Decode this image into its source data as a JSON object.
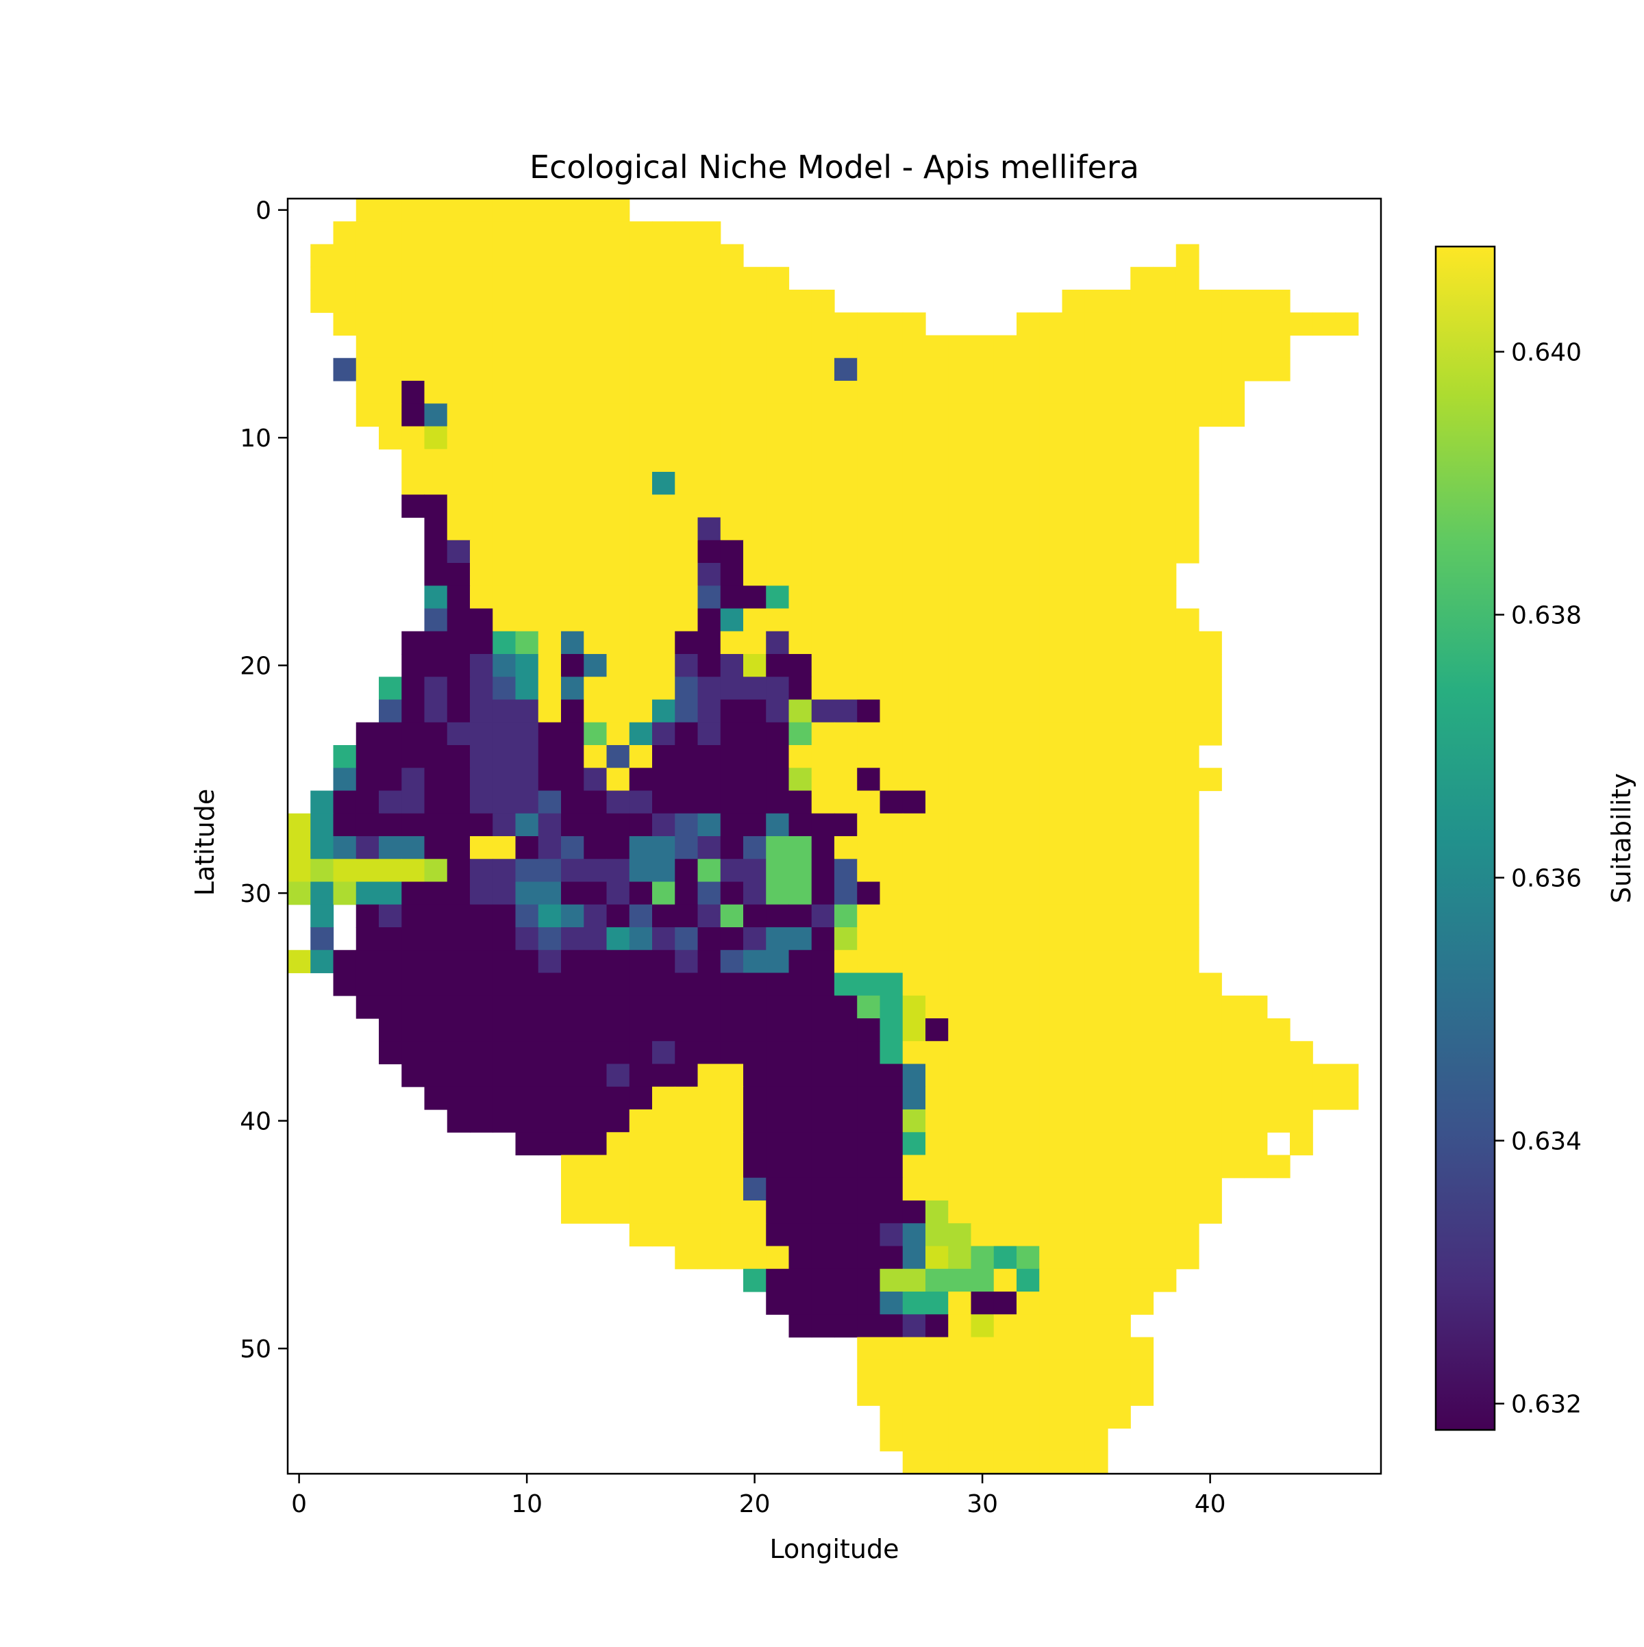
{
  "chart_data": {
    "type": "heatmap",
    "title": "Ecological Niche Model - Apis mellifera",
    "xlabel": "Longitude",
    "ylabel": "Latitude",
    "colorbar_label": "Suitability",
    "xlim": [
      -0.5,
      47.5
    ],
    "ylim": [
      55.5,
      -0.5
    ],
    "xticks": [
      0,
      10,
      20,
      30,
      40
    ],
    "yticks": [
      0,
      10,
      20,
      30,
      40,
      50
    ],
    "colorbar_range": [
      0.6318,
      0.6408
    ],
    "colorbar_ticks": [
      "0.632",
      "0.634",
      "0.636",
      "0.638",
      "0.640"
    ],
    "colorbar_tick_values": [
      0.632,
      0.634,
      0.636,
      0.638,
      0.64
    ],
    "colormap": "viridis",
    "grid": false,
    "nodata": ".",
    "level_key": "0-9 = suitability from 0.6318 (0) to 0.6408 (9)",
    "rows": [
      "...999999999999................................",
      "..99999999999999999............................",
      ".9999999999999999999...................9.......",
      ".999999999999999999999...............999......",
      ".99999999999999999999999..........9999999999...",
      "..99999999999999999999999999....999999999999999",
      "...99999999999999999999999999999999999999999...",
      "..299999999999999999999929999999999999999999...",
      "...990999999999999999999999999999999999999.....",
      "...990399999999999999999999999999999999999.....",
      "....998999999999999999999999999999999999.......",
      ".....99999999999999999999999999999999999.......",
      ".....99999999999499999999999999999999999.......",
      ".....00999999999999999999999999999999999.......",
      "......0999999999991999999999999999999999.......",
      "......0199999999990099999999999999999999.......",
      "......009999999999109999999999999999999........",
      "......409999999999200599999999999999999........",
      "......2009999999990499999999999999999999.......",
      ".....000056939999009919999999999999999999......",
      ".....000134903999101800999999999999999999......",
      "....5010124939999211110999999999999999999......",
      "....2010111909994210017110999999999999999......",
      "...00001111006941010006999999999999999999......",
      "..50000011100929000000999999999999999999.......",
      "..300100111001900000007990999999999999999......",
      ".400110011120011000000099900999999999999.......",
      "8400000001310000123003000999999999999999.......",
      "8431330099012003321026609999999999999999.......",
      "8788887011221113306116602999999999999999.......",
      "7474400011330010602016602099999999999999.......",
      ".4.0100000243102001600016999999999999999.......",
      ".2.0000000121143120013307999999999999999.......",
      "8400000000010000010233009999999999999999.......",
      "..000000000000000000000055599999999999999......",
      "...0000000000000000000000658999999999999999....",
      "....0000000000000000000000580999999999999999...",
      "....00000000000010000000005999999999999999999..",
      ".....000000000100099000000039999999999999999999",
      "......00000000009999000000039999999999999999999",
      ".......00000000999990000000799999999999999999..",
      "..........000099999900000005999999999999999.9..",
      "............99999999000000099999999999999999...",
      "............99999999200000099999999999999......",
      "............99999999900000007999999999999......",
      "...............9999990000013779999999999.......",
      ".................99999000003876569999999.......",
      "....................5000007766695999999........",
      ".....................00000355900999999.........",
      "......................000001098999999..........",
      ".........................9999999999999.........",
      ".........................9999999999999.........",
      ".........................9999999999999.........",
      "..........................99999999999..........",
      "..........................9999999999...........",
      "...........................999999999..........."
    ]
  }
}
